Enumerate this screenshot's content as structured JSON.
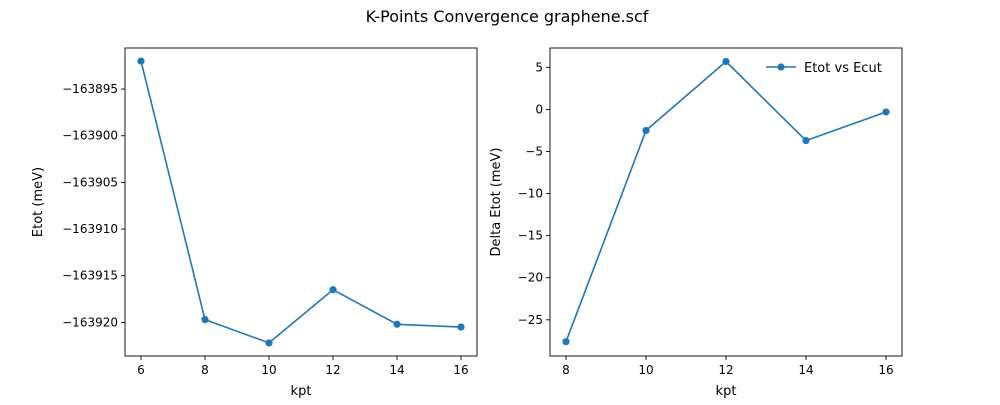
{
  "figure": {
    "suptitle": "K-Points Convergence graphene.scf"
  },
  "chart_data": [
    {
      "type": "line",
      "title": "",
      "xlabel": "kpt",
      "ylabel": "Etot (meV)",
      "x": [
        6,
        8,
        10,
        12,
        14,
        16
      ],
      "series": [
        {
          "values": [
            -163892.0,
            -163919.7,
            -163922.2,
            -163916.5,
            -163920.2,
            -163920.5
          ],
          "color": "#1f77b4",
          "marker": "circle"
        }
      ],
      "xlim": [
        5.5,
        16.5
      ],
      "ylim": [
        -163923.6,
        -163890.6
      ],
      "xticks": [
        6,
        8,
        10,
        12,
        14,
        16
      ],
      "yticks": [
        -163920,
        -163915,
        -163910,
        -163905,
        -163900,
        -163895
      ],
      "ytick_labels": [
        "−163920",
        "−163915",
        "−163910",
        "−163905",
        "−163900",
        "−163895"
      ],
      "xtick_labels": [
        "6",
        "8",
        "10",
        "12",
        "14",
        "16"
      ],
      "grid": false,
      "legend": null
    },
    {
      "type": "line",
      "title": "",
      "xlabel": "kpt",
      "ylabel": "Delta Etot (meV)",
      "x": [
        8,
        10,
        12,
        14,
        16
      ],
      "series": [
        {
          "name": "Etot vs Ecut",
          "values": [
            -27.6,
            -2.5,
            5.7,
            -3.7,
            -0.3
          ],
          "color": "#1f77b4",
          "marker": "circle"
        }
      ],
      "xlim": [
        7.6,
        16.4
      ],
      "ylim": [
        -29.3,
        7.3
      ],
      "xticks": [
        8,
        10,
        12,
        14,
        16
      ],
      "xtick_labels": [
        "8",
        "10",
        "12",
        "14",
        "16"
      ],
      "yticks": [
        -25,
        -20,
        -15,
        -10,
        -5,
        0,
        5
      ],
      "ytick_labels": [
        "−25",
        "−20",
        "−15",
        "−10",
        "−5",
        "0",
        "5"
      ],
      "grid": false,
      "legend": "top-right"
    }
  ]
}
